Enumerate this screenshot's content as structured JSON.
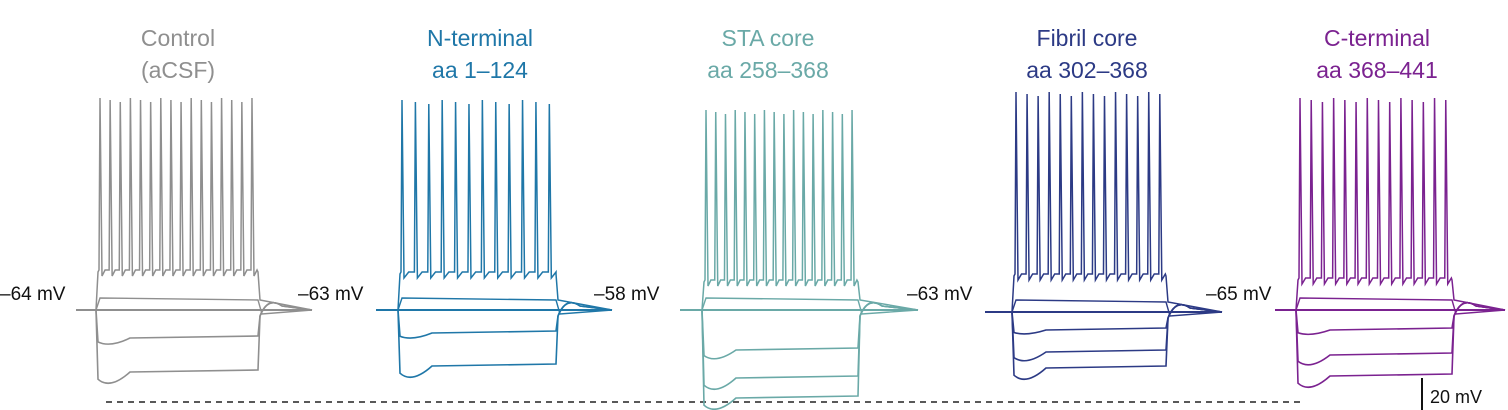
{
  "panels": [
    {
      "title_line1": "Control",
      "title_line2": "(aCSF)",
      "resting_potential": "–64 mV",
      "color": "#8f8f8f",
      "spike_count": 16,
      "hyperpolarizing_steps": 2
    },
    {
      "title_line1": "N-terminal",
      "title_line2": "aa 1–124",
      "resting_potential": "–63 mV",
      "color": "#1f77a8",
      "spike_count": 12,
      "hyperpolarizing_steps": 2
    },
    {
      "title_line1": "STA core",
      "title_line2": "aa 258–368",
      "resting_potential": "–58 mV",
      "color": "#6aa9a7",
      "spike_count": 16,
      "hyperpolarizing_steps": 3
    },
    {
      "title_line1": "Fibril core",
      "title_line2": "aa 302–368",
      "resting_potential": "–63 mV",
      "color": "#2c3a85",
      "spike_count": 14,
      "hyperpolarizing_steps": 3
    },
    {
      "title_line1": "C-terminal",
      "title_line2": "aa 368–441",
      "resting_potential": "–65 mV",
      "color": "#7b2290",
      "spike_count": 14,
      "hyperpolarizing_steps": 3
    }
  ],
  "scale_bar": {
    "label": "20 mV"
  }
}
